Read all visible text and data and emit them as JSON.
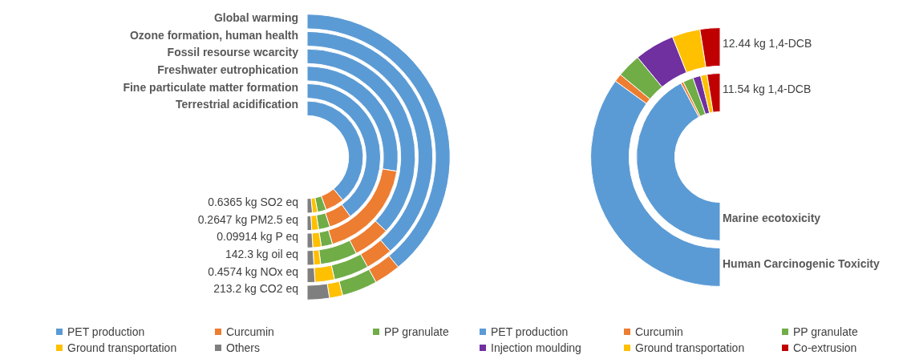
{
  "chart_data": [
    {
      "type": "donut",
      "legend": "bottom",
      "categories": [
        "PET production",
        "Curcumin",
        "PP granulate",
        "Ground transportation",
        "Others"
      ],
      "colors": [
        "#5b9bd5",
        "#ed7d31",
        "#70ad47",
        "#ffc000",
        "#7f7f7f"
      ],
      "annotations": [
        "213.2 kg CO2 eq",
        "0.4574 kg NOx eq",
        "142.3 kg oil eq",
        "0.09914 kg P eq",
        "0.2647 kg PM2.5 eq",
        "0.6365 kg SO2 eq"
      ],
      "series": [
        {
          "name": "Global warming",
          "values": [
            78,
            6,
            8,
            3,
            5
          ]
        },
        {
          "name": "Ozone formation, human health",
          "values": [
            77,
            7,
            9,
            5,
            2
          ]
        },
        {
          "name": "Fossil resourse wcarcity",
          "values": [
            74,
            11,
            11,
            2,
            2
          ]
        },
        {
          "name": "Freshwater eutrophication",
          "values": [
            55,
            36,
            4,
            3,
            2
          ]
        },
        {
          "name": "Fine particulate matter formation",
          "values": [
            80,
            10,
            5,
            3,
            2
          ]
        },
        {
          "name": "Terrestrial acidification",
          "values": [
            78,
            11,
            5,
            3,
            3
          ]
        }
      ]
    },
    {
      "type": "donut",
      "legend": "bottom",
      "categories": [
        "PET production",
        "Curcumin",
        "PP granulate",
        "Injection moulding",
        "Ground transportation",
        "Co-extrusion"
      ],
      "colors": [
        "#5b9bd5",
        "#ed7d31",
        "#70ad47",
        "#7030a0",
        "#ffc000",
        "#c00000"
      ],
      "annotations": [
        "12.44 kg 1,4-DCB",
        "11.54 kg 1,4-DCB"
      ],
      "series": [
        {
          "name": "Human Carcinogenic Toxicity",
          "values": [
            70,
            2,
            6,
            10,
            7,
            5
          ]
        },
        {
          "name": "Marine ecotoxicity",
          "values": [
            84.5,
            1,
            4,
            3,
            2.5,
            5
          ]
        }
      ]
    }
  ]
}
